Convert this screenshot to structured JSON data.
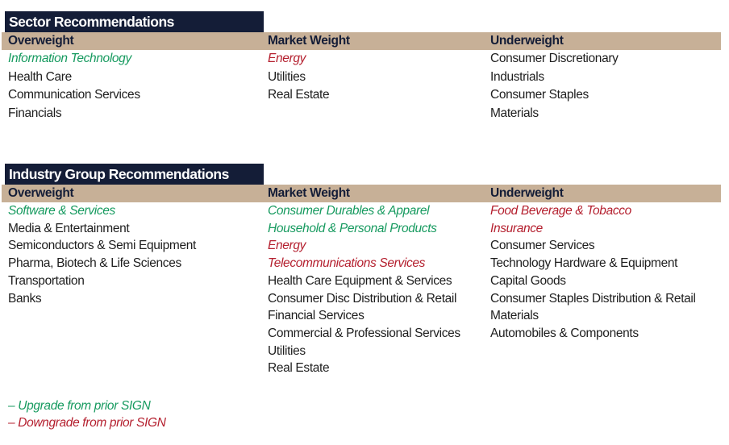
{
  "colors": {
    "navy": "#141d37",
    "tan": "#c7b097",
    "green": "#169a5f",
    "red": "#b41f2e",
    "ink": "#1e1e1e"
  },
  "sections": [
    {
      "title": "Sector Recommendations",
      "columns": [
        {
          "header": "Overweight",
          "items": [
            {
              "label": "Information Technology",
              "status": "upgrade"
            },
            {
              "label": "Health Care",
              "status": "none"
            },
            {
              "label": "Communication Services",
              "status": "none"
            },
            {
              "label": "Financials",
              "status": "none"
            }
          ]
        },
        {
          "header": "Market Weight",
          "items": [
            {
              "label": "Energy",
              "status": "downgrade"
            },
            {
              "label": "Utilities",
              "status": "none"
            },
            {
              "label": "Real Estate",
              "status": "none"
            }
          ]
        },
        {
          "header": "Underweight",
          "items": [
            {
              "label": "Consumer Discretionary",
              "status": "none"
            },
            {
              "label": "Industrials",
              "status": "none"
            },
            {
              "label": "Consumer Staples",
              "status": "none"
            },
            {
              "label": "Materials",
              "status": "none"
            }
          ]
        }
      ]
    },
    {
      "title": "Industry Group Recommendations",
      "columns": [
        {
          "header": "Overweight",
          "items": [
            {
              "label": "Software & Services",
              "status": "upgrade"
            },
            {
              "label": "Media & Entertainment",
              "status": "none"
            },
            {
              "label": "Semiconductors & Semi Equipment",
              "status": "none"
            },
            {
              "label": "Pharma, Biotech & Life Sciences",
              "status": "none"
            },
            {
              "label": "Transportation",
              "status": "none"
            },
            {
              "label": "Banks",
              "status": "none"
            }
          ]
        },
        {
          "header": "Market Weight",
          "items": [
            {
              "label": "Consumer Durables & Apparel",
              "status": "upgrade"
            },
            {
              "label": "Household & Personal Products",
              "status": "upgrade"
            },
            {
              "label": "Energy",
              "status": "downgrade"
            },
            {
              "label": "Telecommunications Services",
              "status": "downgrade"
            },
            {
              "label": "Health Care Equipment & Services",
              "status": "none"
            },
            {
              "label": "Consumer Disc Distribution & Retail",
              "status": "none"
            },
            {
              "label": "Financial Services",
              "status": "none"
            },
            {
              "label": "Commercial & Professional Services",
              "status": "none"
            },
            {
              "label": "Utilities",
              "status": "none"
            },
            {
              "label": "Real Estate",
              "status": "none"
            }
          ]
        },
        {
          "header": "Underweight",
          "items": [
            {
              "label": "Food Beverage & Tobacco",
              "status": "downgrade"
            },
            {
              "label": "Insurance",
              "status": "downgrade"
            },
            {
              "label": "Consumer Services",
              "status": "none"
            },
            {
              "label": "Technology Hardware & Equipment",
              "status": "none"
            },
            {
              "label": "Capital Goods",
              "status": "none"
            },
            {
              "label": "Consumer Staples Distribution & Retail",
              "status": "none"
            },
            {
              "label": "Materials",
              "status": "none"
            },
            {
              "label": "Automobiles & Components",
              "status": "none"
            }
          ]
        }
      ]
    }
  ],
  "legend": {
    "upgrade": "– Upgrade from prior SIGN",
    "downgrade": "– Downgrade from prior SIGN"
  }
}
